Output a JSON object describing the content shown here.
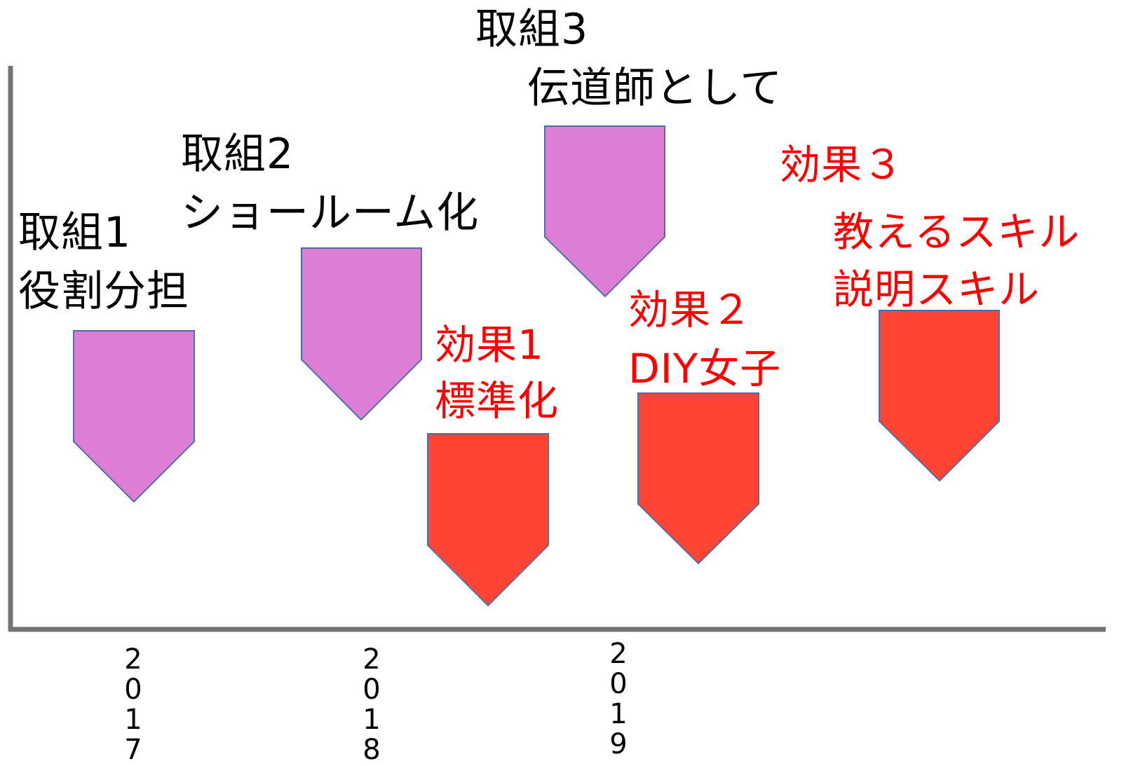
{
  "colors": {
    "action_fill": "#dc7fd4",
    "effect_fill": "#ff4433",
    "arrow_stroke": "#4a6fa8",
    "axis": "#737373",
    "action_text": "#000000",
    "effect_text": "#ff0000"
  },
  "actions": [
    {
      "title": "取組1",
      "subtitle": "役割分担"
    },
    {
      "title": "取組2",
      "subtitle": "ショールーム化"
    },
    {
      "title": "取組3",
      "subtitle": "伝道師として"
    }
  ],
  "effects": [
    {
      "title": "効果1",
      "subtitle": "標準化"
    },
    {
      "title": "効果２",
      "subtitle": "DIY女子"
    },
    {
      "title": "効果３",
      "subtitle": "教えるスキル",
      "subtitle2": "説明スキル"
    }
  ],
  "years": [
    {
      "digits": [
        "2",
        "0",
        "1",
        "7"
      ]
    },
    {
      "digits": [
        "2",
        "0",
        "1",
        "8"
      ]
    },
    {
      "digits": [
        "2",
        "0",
        "1",
        "9"
      ]
    }
  ]
}
